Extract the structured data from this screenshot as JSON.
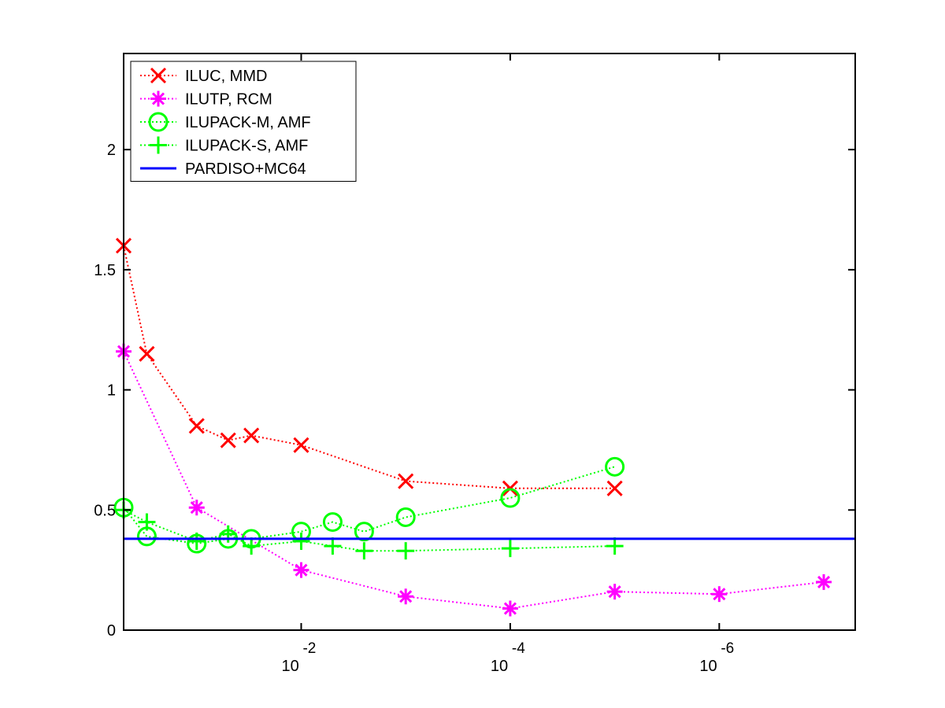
{
  "chart_data": {
    "type": "line",
    "title": "",
    "xlabel": "",
    "ylabel": "",
    "x_scale": "log-reversed",
    "xlim": [
      0.5,
      5e-08
    ],
    "ylim": [
      0,
      2.4
    ],
    "grid": false,
    "legend_position": "top-left",
    "y_ticks": [
      {
        "value": 0,
        "label": "0"
      },
      {
        "value": 0.5,
        "label": "0.5"
      },
      {
        "value": 1,
        "label": "1"
      },
      {
        "value": 1.5,
        "label": "1.5"
      },
      {
        "value": 2,
        "label": "2"
      }
    ],
    "x_ticks": [
      {
        "value": 0.01,
        "base": "10",
        "exponent": "-2"
      },
      {
        "value": 0.0001,
        "base": "10",
        "exponent": "-4"
      },
      {
        "value": 1e-06,
        "base": "10",
        "exponent": "-6"
      }
    ],
    "series": [
      {
        "name": "ILUC, MMD",
        "color": "#ff0000",
        "marker": "x",
        "line": "dotted",
        "x": [
          0.5,
          0.3,
          0.1,
          0.05,
          0.03,
          0.01,
          0.001,
          0.0001,
          1e-05
        ],
        "y": [
          1.6,
          1.15,
          0.85,
          0.79,
          0.81,
          0.77,
          0.62,
          0.59,
          0.59
        ]
      },
      {
        "name": "ILUTP, RCM",
        "color": "#ff00ff",
        "marker": "asterisk",
        "line": "dotted",
        "x": [
          0.5,
          0.1,
          0.01,
          0.001,
          0.0001,
          1e-05,
          1e-06,
          1e-07
        ],
        "y": [
          1.16,
          0.51,
          0.25,
          0.14,
          0.09,
          0.16,
          0.15,
          0.2
        ]
      },
      {
        "name": "ILUPACK-M, AMF",
        "color": "#00ff00",
        "marker": "circle",
        "line": "dotted",
        "x": [
          0.5,
          0.3,
          0.1,
          0.05,
          0.03,
          0.01,
          0.005,
          0.0025,
          0.001,
          0.0001,
          1e-05
        ],
        "y": [
          0.51,
          0.39,
          0.36,
          0.38,
          0.38,
          0.41,
          0.45,
          0.41,
          0.47,
          0.55,
          0.68
        ]
      },
      {
        "name": "ILUPACK-S, AMF",
        "color": "#00ff00",
        "marker": "plus",
        "line": "dotted",
        "x": [
          0.5,
          0.3,
          0.1,
          0.05,
          0.03,
          0.01,
          0.005,
          0.0025,
          0.001,
          0.0001,
          1e-05
        ],
        "y": [
          0.5,
          0.45,
          0.37,
          0.4,
          0.35,
          0.37,
          0.35,
          0.33,
          0.33,
          0.34,
          0.35
        ]
      },
      {
        "name": "PARDISO+MC64",
        "color": "#0000ff",
        "marker": "none",
        "line": "solid",
        "x": [
          0.5,
          5e-08
        ],
        "y": [
          0.38,
          0.38
        ]
      }
    ]
  }
}
